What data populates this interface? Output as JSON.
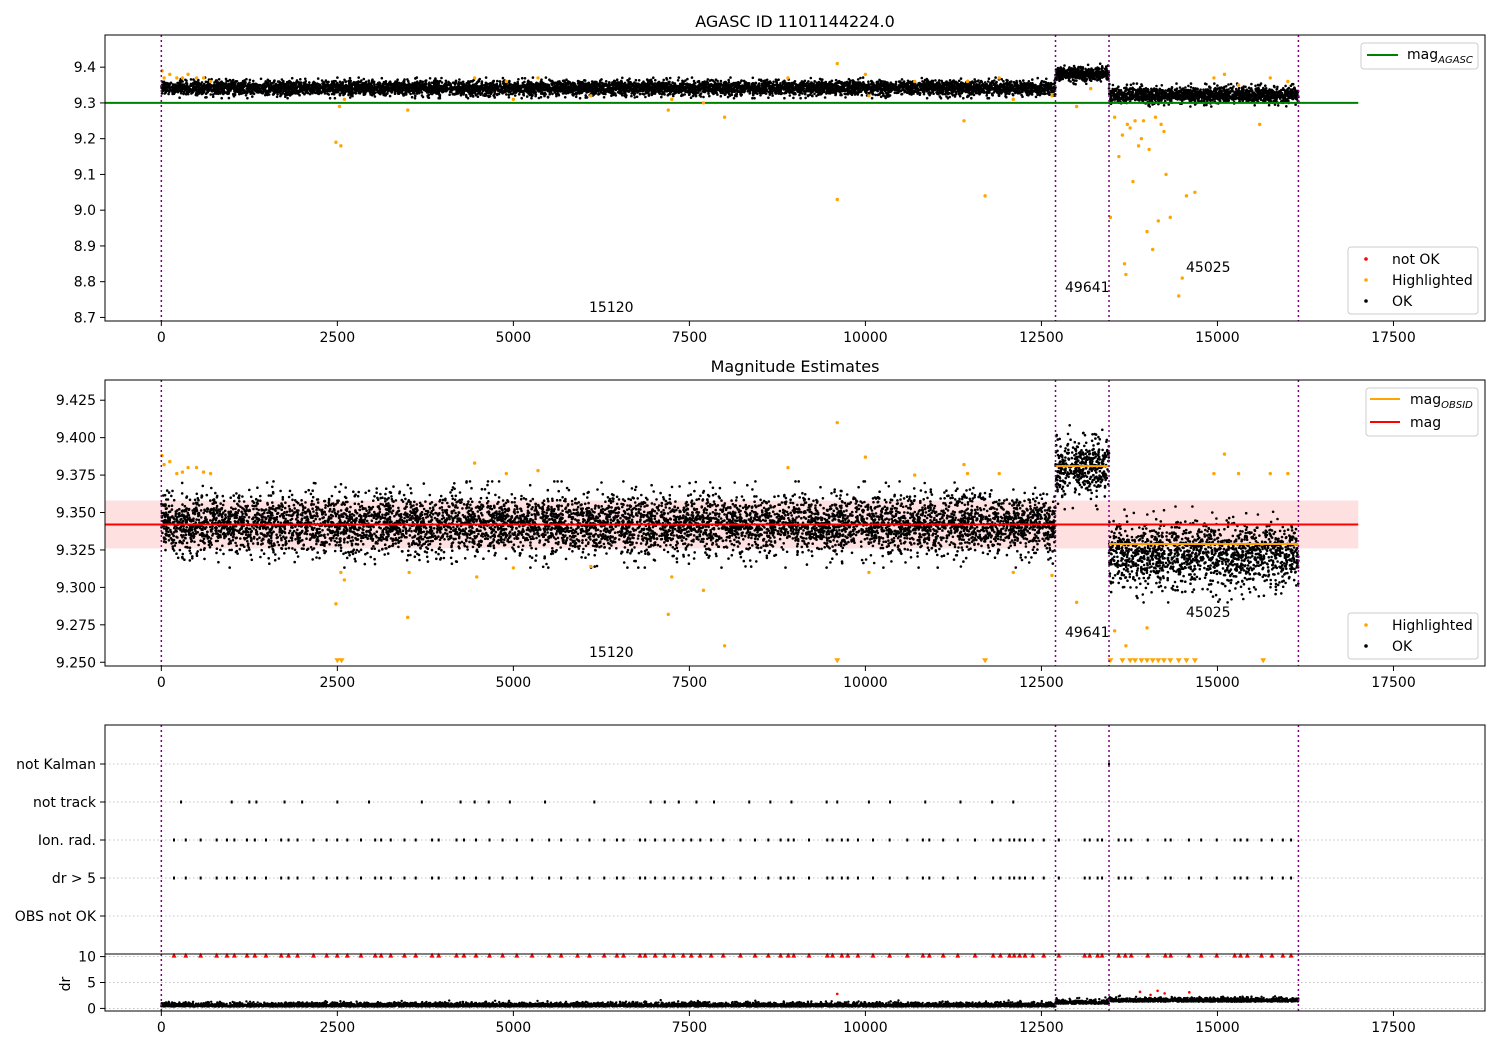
{
  "chart_data": [
    {
      "type": "scatter",
      "title": "AGASC ID 1101144224.0",
      "xlim": [
        -800,
        18800
      ],
      "ylim": [
        8.69,
        9.49
      ],
      "x_ticks": [
        0,
        2500,
        5000,
        7500,
        10000,
        12500,
        15000,
        17500
      ],
      "y_ticks": [
        8.7,
        8.8,
        8.9,
        9.0,
        9.1,
        9.2,
        9.3,
        9.4
      ],
      "reference_lines": [
        {
          "name": "mag",
          "subscript": "AGASC",
          "y": 9.3,
          "x_range": [
            -800,
            17000
          ],
          "color": "#008000"
        }
      ],
      "segment_boundaries": [
        0,
        12700,
        13460,
        16150
      ],
      "obsid_labels": [
        {
          "text": "15120",
          "x": 6350,
          "y": 8.72
        },
        {
          "text": "49641",
          "x": 13080,
          "y": 8.78
        },
        {
          "text": "45025",
          "x": 14750,
          "y": 8.84
        }
      ],
      "series": [
        {
          "name": "not OK",
          "color": "#ff0000",
          "points": []
        },
        {
          "name": "Highlighted",
          "color": "#ffa500",
          "points": [
            [
              10,
              9.39
            ],
            [
              40,
              9.37
            ],
            [
              120,
              9.38
            ],
            [
              220,
              9.37
            ],
            [
              300,
              9.37
            ],
            [
              380,
              9.38
            ],
            [
              500,
              9.37
            ],
            [
              600,
              9.37
            ],
            [
              700,
              9.36
            ],
            [
              2480,
              9.19
            ],
            [
              2550,
              9.18
            ],
            [
              2530,
              9.29
            ],
            [
              2600,
              9.31
            ],
            [
              3500,
              9.28
            ],
            [
              4450,
              9.37
            ],
            [
              4900,
              9.36
            ],
            [
              5000,
              9.31
            ],
            [
              5350,
              9.37
            ],
            [
              6100,
              9.32
            ],
            [
              7200,
              9.28
            ],
            [
              7250,
              9.31
            ],
            [
              7700,
              9.3
            ],
            [
              8000,
              9.26
            ],
            [
              8900,
              9.37
            ],
            [
              9600,
              9.41
            ],
            [
              9600,
              9.03
            ],
            [
              10000,
              9.38
            ],
            [
              10050,
              9.32
            ],
            [
              10700,
              9.36
            ],
            [
              11400,
              9.25
            ],
            [
              11450,
              9.36
            ],
            [
              11700,
              9.04
            ],
            [
              11900,
              9.37
            ],
            [
              12100,
              9.31
            ],
            [
              12650,
              9.32
            ],
            [
              13000,
              9.29
            ],
            [
              13200,
              9.34
            ],
            [
              13480,
              8.98
            ],
            [
              13540,
              9.26
            ],
            [
              13600,
              9.15
            ],
            [
              13650,
              9.21
            ],
            [
              13680,
              8.85
            ],
            [
              13700,
              8.82
            ],
            [
              13720,
              9.24
            ],
            [
              13760,
              9.23
            ],
            [
              13800,
              9.08
            ],
            [
              13830,
              9.25
            ],
            [
              13880,
              9.18
            ],
            [
              13920,
              9.2
            ],
            [
              13950,
              9.25
            ],
            [
              14000,
              8.94
            ],
            [
              14030,
              9.17
            ],
            [
              14080,
              8.89
            ],
            [
              14120,
              9.26
            ],
            [
              14160,
              8.97
            ],
            [
              14200,
              9.24
            ],
            [
              14240,
              9.22
            ],
            [
              14270,
              9.1
            ],
            [
              14330,
              8.98
            ],
            [
              14450,
              8.76
            ],
            [
              14500,
              8.81
            ],
            [
              14560,
              9.04
            ],
            [
              14680,
              9.05
            ],
            [
              14950,
              9.37
            ],
            [
              15100,
              9.38
            ],
            [
              15300,
              9.35
            ],
            [
              15600,
              9.24
            ],
            [
              15750,
              9.37
            ],
            [
              16000,
              9.36
            ]
          ]
        },
        {
          "name": "OK",
          "color": "#000000",
          "description": "dense",
          "segments": [
            {
              "x_range": [
                0,
                12700
              ],
              "center": 9.342,
              "spread": 0.018
            },
            {
              "x_range": [
                12700,
                13460
              ],
              "center": 9.381,
              "spread": 0.018
            },
            {
              "x_range": [
                13460,
                16150
              ],
              "center": 9.322,
              "spread": 0.02
            }
          ]
        }
      ],
      "legend": {
        "placement": "lower right",
        "entries": [
          "not OK",
          "Highlighted",
          "OK"
        ]
      },
      "legend_top": {
        "placement": "upper right",
        "entries": [
          {
            "name": "mag",
            "subscript": "AGASC"
          }
        ]
      }
    },
    {
      "type": "scatter",
      "title": "Magnitude Estimates",
      "xlim": [
        -800,
        18800
      ],
      "ylim": [
        9.2475,
        9.4385
      ],
      "x_ticks": [
        0,
        2500,
        5000,
        7500,
        10000,
        12500,
        15000,
        17500
      ],
      "y_ticks": [
        9.25,
        9.275,
        9.3,
        9.325,
        9.35,
        9.375,
        9.4,
        9.425
      ],
      "band": {
        "y_range": [
          9.326,
          9.358
        ],
        "x_range": [
          -800,
          17000
        ],
        "color": "#ffd6d6"
      },
      "reference_lines": [
        {
          "name": "mag",
          "y": 9.342,
          "x_range": [
            -800,
            17000
          ],
          "color": "#ff0000"
        },
        {
          "name": "mag",
          "subscript": "OBSID",
          "segments": [
            {
              "x_range": [
                12700,
                13460
              ],
              "y": 9.381
            },
            {
              "x_range": [
                13460,
                16150
              ],
              "y": 9.329
            }
          ],
          "color": "#ffa500"
        }
      ],
      "segment_boundaries": [
        0,
        12700,
        13460,
        16150
      ],
      "obsid_labels": [
        {
          "text": "15120",
          "x": 6350,
          "y": 9.254
        },
        {
          "text": "49641",
          "x": 13080,
          "y": 9.268
        },
        {
          "text": "45025",
          "x": 14750,
          "y": 9.282
        }
      ],
      "series": [
        {
          "name": "Highlighted",
          "color": "#ffa500",
          "points": [
            [
              10,
              9.388
            ],
            [
              40,
              9.382
            ],
            [
              120,
              9.384
            ],
            [
              220,
              9.376
            ],
            [
              300,
              9.377
            ],
            [
              380,
              9.38
            ],
            [
              500,
              9.38
            ],
            [
              600,
              9.377
            ],
            [
              700,
              9.376
            ],
            [
              2480,
              9.289
            ],
            [
              2550,
              9.31
            ],
            [
              2600,
              9.305
            ],
            [
              3500,
              9.28
            ],
            [
              3520,
              9.31
            ],
            [
              4450,
              9.383
            ],
            [
              4480,
              9.307
            ],
            [
              4900,
              9.376
            ],
            [
              5000,
              9.313
            ],
            [
              5350,
              9.378
            ],
            [
              6100,
              9.314
            ],
            [
              7200,
              9.282
            ],
            [
              7250,
              9.307
            ],
            [
              7700,
              9.298
            ],
            [
              8000,
              9.261
            ],
            [
              8900,
              9.38
            ],
            [
              9600,
              9.41
            ],
            [
              10000,
              9.387
            ],
            [
              10050,
              9.31
            ],
            [
              10700,
              9.375
            ],
            [
              11400,
              9.382
            ],
            [
              11450,
              9.376
            ],
            [
              11900,
              9.376
            ],
            [
              12100,
              9.31
            ],
            [
              12650,
              9.308
            ],
            [
              13000,
              9.29
            ],
            [
              13540,
              9.271
            ],
            [
              13700,
              9.261
            ],
            [
              14000,
              9.273
            ],
            [
              14950,
              9.376
            ],
            [
              15100,
              9.389
            ],
            [
              15300,
              9.376
            ],
            [
              15750,
              9.376
            ],
            [
              16000,
              9.376
            ]
          ]
        },
        {
          "name": "Highlighted (below axis)",
          "color": "#ffa500",
          "points": [
            [
              2500,
              9.25
            ],
            [
              2560,
              9.25
            ],
            [
              9600,
              9.25
            ],
            [
              11700,
              9.25
            ],
            [
              13480,
              9.25
            ],
            [
              13650,
              9.25
            ],
            [
              13760,
              9.25
            ],
            [
              13830,
              9.25
            ],
            [
              13920,
              9.25
            ],
            [
              14000,
              9.25
            ],
            [
              14080,
              9.25
            ],
            [
              14160,
              9.25
            ],
            [
              14240,
              9.25
            ],
            [
              14330,
              9.25
            ],
            [
              14450,
              9.25
            ],
            [
              14560,
              9.25
            ],
            [
              14680,
              9.25
            ],
            [
              15650,
              9.25
            ]
          ]
        },
        {
          "name": "OK",
          "color": "#000000",
          "description": "dense",
          "segments": [
            {
              "x_range": [
                0,
                12700
              ],
              "center": 9.342,
              "spread": 0.018
            },
            {
              "x_range": [
                12700,
                13460
              ],
              "center": 9.381,
              "spread": 0.018
            },
            {
              "x_range": [
                13460,
                16150
              ],
              "center": 9.322,
              "spread": 0.02
            }
          ]
        }
      ],
      "legend": {
        "placement": "lower right",
        "entries": [
          "Highlighted",
          "OK"
        ]
      },
      "legend_top": {
        "placement": "upper right",
        "entries": [
          {
            "name": "mag",
            "subscript": "OBSID"
          },
          {
            "name": "mag"
          }
        ]
      }
    },
    {
      "type": "scatter",
      "title": "",
      "xlim": [
        -800,
        18800
      ],
      "categories": [
        "not Kalman",
        "not track",
        "Ion. rad.",
        "dr > 5",
        "OBS not OK"
      ],
      "flag_points": {
        "not Kalman": [
          13460
        ],
        "not track": [
          280,
          1000,
          1250,
          1350,
          1750,
          2000,
          2500,
          2950,
          3700,
          4250,
          4450,
          4650,
          4950,
          5450,
          6150,
          6950,
          7150,
          7350,
          7600,
          7850,
          8350,
          8650,
          8950,
          9450,
          9600,
          10050,
          10350,
          10850,
          11350,
          11800,
          12100
        ],
        "Ion. rad.": "dense",
        "dr > 5": "dense",
        "OBS not OK": []
      },
      "segment_boundaries": [
        0,
        12700,
        13460,
        16150
      ]
    },
    {
      "type": "scatter",
      "title": "",
      "xlim": [
        -800,
        18800
      ],
      "ylabel": "dr",
      "ylim": [
        -0.5,
        10.5
      ],
      "y_ticks": [
        0,
        5,
        10
      ],
      "capped_value": 10,
      "segment_boundaries": [
        0,
        12700,
        13460,
        16150
      ]
    }
  ]
}
